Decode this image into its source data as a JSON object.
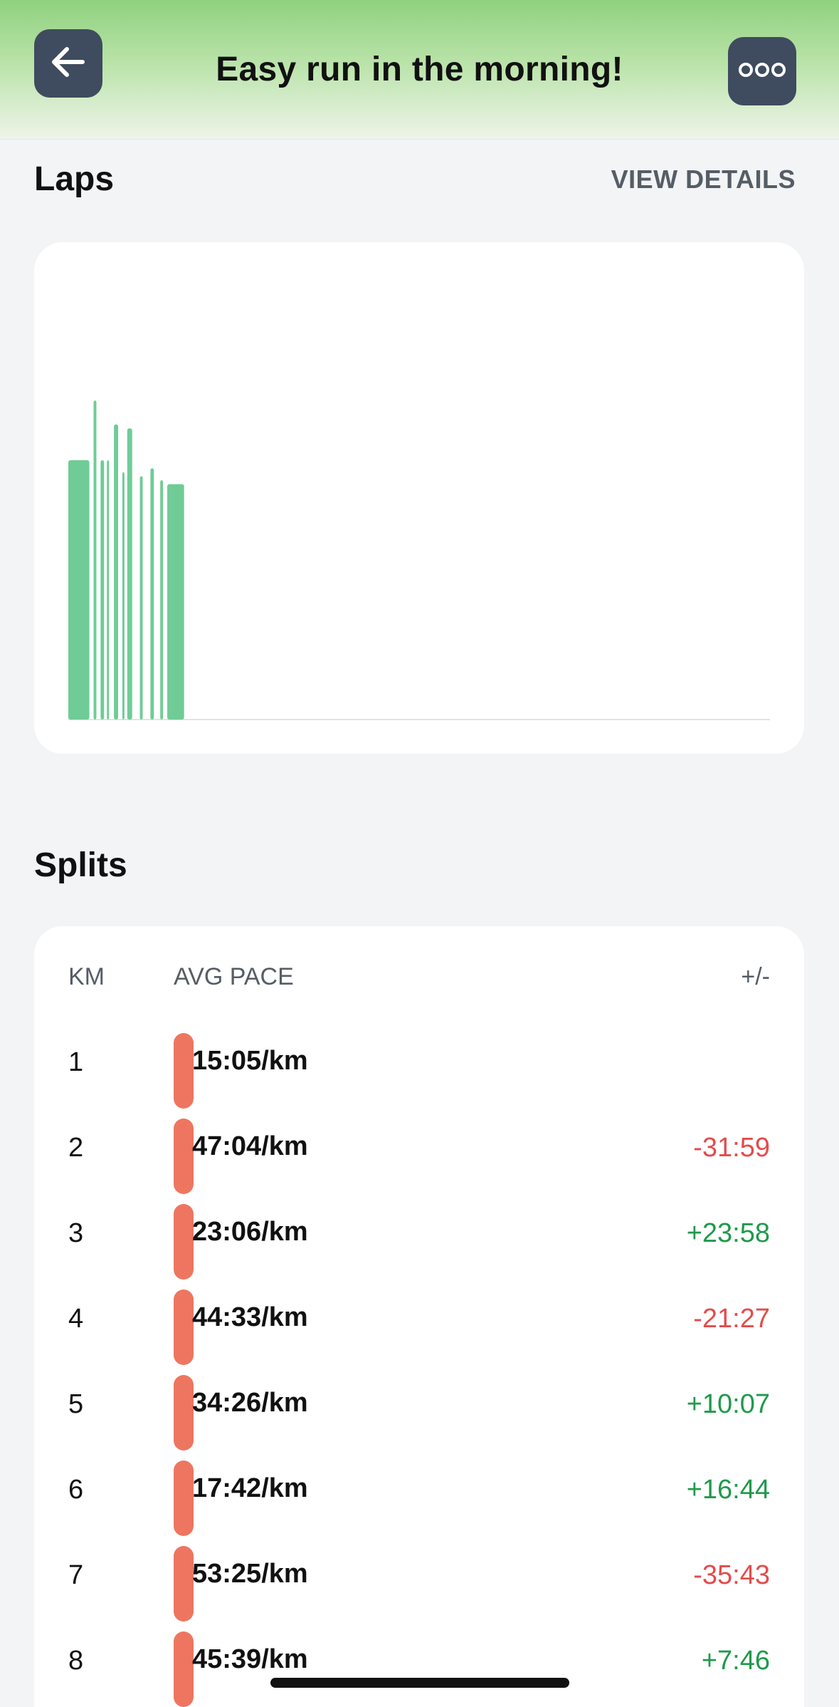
{
  "header": {
    "title": "Easy run in the morning!",
    "back_icon": "arrow-left-icon",
    "more_icon": "more-dots-icon"
  },
  "laps": {
    "title": "Laps",
    "view_details": "VIEW DETAILS"
  },
  "chart_data": {
    "type": "bar",
    "xlabel": "",
    "ylabel": "",
    "color": "#6fcc96",
    "grid": false,
    "ylim": [
      0,
      1
    ],
    "bars": [
      {
        "x": 0.0,
        "w": 0.03,
        "v": 0.65
      },
      {
        "x": 0.036,
        "w": 0.004,
        "v": 0.8
      },
      {
        "x": 0.046,
        "w": 0.005,
        "v": 0.65
      },
      {
        "x": 0.055,
        "w": 0.003,
        "v": 0.65
      },
      {
        "x": 0.065,
        "w": 0.006,
        "v": 0.74
      },
      {
        "x": 0.077,
        "w": 0.003,
        "v": 0.62
      },
      {
        "x": 0.084,
        "w": 0.007,
        "v": 0.73
      },
      {
        "x": 0.102,
        "w": 0.004,
        "v": 0.61
      },
      {
        "x": 0.117,
        "w": 0.005,
        "v": 0.63
      },
      {
        "x": 0.131,
        "w": 0.004,
        "v": 0.6
      },
      {
        "x": 0.141,
        "w": 0.024,
        "v": 0.59
      }
    ]
  },
  "splits": {
    "title": "Splits",
    "columns": {
      "km": "KM",
      "pace": "AVG PACE",
      "diff": "+/-"
    },
    "rows": [
      {
        "km": "1",
        "pace": "15:05/km",
        "diff": "",
        "sign": "none"
      },
      {
        "km": "2",
        "pace": "47:04/km",
        "diff": "-31:59",
        "sign": "neg"
      },
      {
        "km": "3",
        "pace": "23:06/km",
        "diff": "+23:58",
        "sign": "pos"
      },
      {
        "km": "4",
        "pace": "44:33/km",
        "diff": "-21:27",
        "sign": "neg"
      },
      {
        "km": "5",
        "pace": "34:26/km",
        "diff": "+10:07",
        "sign": "pos"
      },
      {
        "km": "6",
        "pace": "17:42/km",
        "diff": "+16:44",
        "sign": "pos"
      },
      {
        "km": "7",
        "pace": "53:25/km",
        "diff": "-35:43",
        "sign": "neg"
      },
      {
        "km": "8",
        "pace": "45:39/km",
        "diff": "+7:46",
        "sign": "pos"
      }
    ]
  }
}
